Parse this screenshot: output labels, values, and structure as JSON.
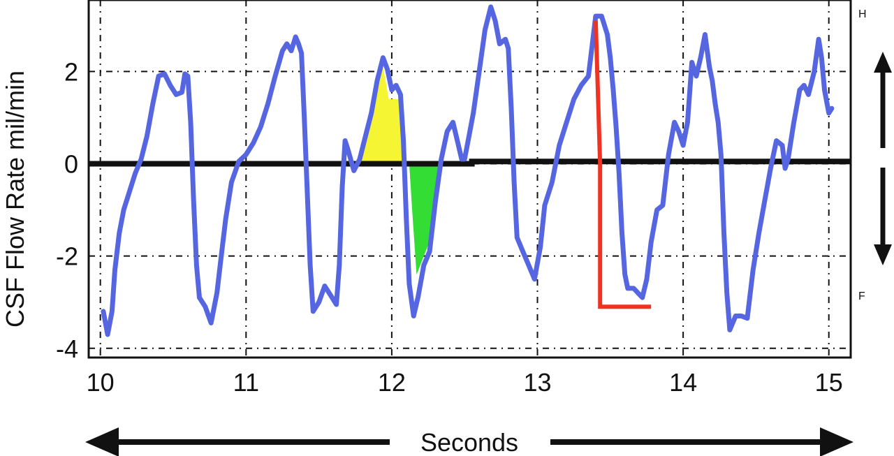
{
  "chart_data": {
    "type": "line",
    "title": "",
    "xlabel": "Seconds",
    "ylabel": "CSF Flow Rate mil/min",
    "xlim": [
      9.92,
      15.15
    ],
    "ylim": [
      -4.2,
      3.55
    ],
    "grid": true,
    "x_ticks": [
      "10",
      "11",
      "12",
      "13",
      "14",
      "15"
    ],
    "y_ticks": [
      "2",
      "0",
      "-2",
      "-4"
    ],
    "direction_labels": {
      "up": "H",
      "down": "F"
    },
    "series": [
      {
        "color": "#5566e0",
        "points": [
          [
            10.02,
            -3.2
          ],
          [
            10.05,
            -3.7
          ],
          [
            10.08,
            -3.2
          ],
          [
            10.1,
            -2.3
          ],
          [
            10.13,
            -1.5
          ],
          [
            10.16,
            -1.0
          ],
          [
            10.2,
            -0.6
          ],
          [
            10.24,
            -0.2
          ],
          [
            10.28,
            0.1
          ],
          [
            10.32,
            0.6
          ],
          [
            10.36,
            1.3
          ],
          [
            10.4,
            1.9
          ],
          [
            10.44,
            1.95
          ],
          [
            10.48,
            1.7
          ],
          [
            10.52,
            1.5
          ],
          [
            10.56,
            1.55
          ],
          [
            10.58,
            1.95
          ],
          [
            10.6,
            1.9
          ],
          [
            10.62,
            0.9
          ],
          [
            10.64,
            -0.8
          ],
          [
            10.66,
            -2.2
          ],
          [
            10.68,
            -2.9
          ],
          [
            10.72,
            -3.1
          ],
          [
            10.76,
            -3.45
          ],
          [
            10.8,
            -2.8
          ],
          [
            10.83,
            -2.0
          ],
          [
            10.86,
            -1.2
          ],
          [
            10.9,
            -0.4
          ],
          [
            10.95,
            0.05
          ],
          [
            11.0,
            0.2
          ],
          [
            11.05,
            0.45
          ],
          [
            11.1,
            0.8
          ],
          [
            11.15,
            1.3
          ],
          [
            11.2,
            1.9
          ],
          [
            11.25,
            2.45
          ],
          [
            11.28,
            2.6
          ],
          [
            11.31,
            2.45
          ],
          [
            11.34,
            2.75
          ],
          [
            11.36,
            2.6
          ],
          [
            11.38,
            2.4
          ],
          [
            11.4,
            1.0
          ],
          [
            11.42,
            -0.6
          ],
          [
            11.44,
            -2.2
          ],
          [
            11.46,
            -3.2
          ],
          [
            11.5,
            -3.0
          ],
          [
            11.54,
            -2.65
          ],
          [
            11.58,
            -2.85
          ],
          [
            11.62,
            -3.05
          ],
          [
            11.64,
            -2.2
          ],
          [
            11.66,
            -0.5
          ],
          [
            11.68,
            0.5
          ],
          [
            11.7,
            0.3
          ],
          [
            11.74,
            -0.15
          ],
          [
            11.78,
            0.1
          ],
          [
            11.82,
            0.6
          ],
          [
            11.86,
            1.1
          ],
          [
            11.9,
            1.8
          ],
          [
            11.94,
            2.3
          ],
          [
            11.97,
            2.05
          ],
          [
            12.0,
            1.6
          ],
          [
            12.03,
            1.7
          ],
          [
            12.06,
            1.5
          ],
          [
            12.08,
            0.5
          ],
          [
            12.1,
            -1.2
          ],
          [
            12.12,
            -2.6
          ],
          [
            12.15,
            -3.3
          ],
          [
            12.18,
            -2.9
          ],
          [
            12.22,
            -2.2
          ],
          [
            12.26,
            -1.9
          ],
          [
            12.3,
            -0.8
          ],
          [
            12.34,
            0.1
          ],
          [
            12.38,
            0.7
          ],
          [
            12.42,
            0.9
          ],
          [
            12.45,
            0.5
          ],
          [
            12.48,
            0.1
          ],
          [
            12.5,
            0.1
          ],
          [
            12.53,
            0.6
          ],
          [
            12.56,
            1.1
          ],
          [
            12.6,
            2.0
          ],
          [
            12.64,
            2.9
          ],
          [
            12.68,
            3.4
          ],
          [
            12.71,
            3.1
          ],
          [
            12.74,
            2.6
          ],
          [
            12.78,
            2.7
          ],
          [
            12.8,
            2.5
          ],
          [
            12.82,
            1.2
          ],
          [
            12.84,
            -0.4
          ],
          [
            12.86,
            -1.6
          ],
          [
            12.9,
            -1.9
          ],
          [
            12.94,
            -2.2
          ],
          [
            12.98,
            -2.5
          ],
          [
            13.02,
            -1.8
          ],
          [
            13.05,
            -0.9
          ],
          [
            13.1,
            -0.4
          ],
          [
            13.15,
            0.4
          ],
          [
            13.2,
            0.9
          ],
          [
            13.25,
            1.4
          ],
          [
            13.3,
            1.7
          ],
          [
            13.35,
            1.9
          ],
          [
            13.4,
            3.2
          ],
          [
            13.44,
            3.2
          ],
          [
            13.48,
            2.8
          ],
          [
            13.5,
            2.3
          ],
          [
            13.52,
            1.6
          ],
          [
            13.54,
            0.8
          ],
          [
            13.56,
            -0.2
          ],
          [
            13.58,
            -1.5
          ],
          [
            13.6,
            -2.4
          ],
          [
            13.62,
            -2.7
          ],
          [
            13.66,
            -2.7
          ],
          [
            13.72,
            -2.9
          ],
          [
            13.75,
            -2.5
          ],
          [
            13.78,
            -1.7
          ],
          [
            13.82,
            -1.0
          ],
          [
            13.86,
            -0.9
          ],
          [
            13.9,
            0.2
          ],
          [
            13.94,
            0.9
          ],
          [
            13.97,
            0.7
          ],
          [
            14.0,
            0.4
          ],
          [
            14.03,
            0.9
          ],
          [
            14.06,
            2.2
          ],
          [
            14.09,
            1.9
          ],
          [
            14.12,
            2.3
          ],
          [
            14.15,
            2.8
          ],
          [
            14.18,
            2.1
          ],
          [
            14.2,
            1.8
          ],
          [
            14.22,
            1.3
          ],
          [
            14.24,
            0.9
          ],
          [
            14.26,
            0.2
          ],
          [
            14.28,
            -1.5
          ],
          [
            14.3,
            -2.8
          ],
          [
            14.32,
            -3.6
          ],
          [
            14.36,
            -3.3
          ],
          [
            14.4,
            -3.3
          ],
          [
            14.44,
            -3.35
          ],
          [
            14.48,
            -2.3
          ],
          [
            14.52,
            -1.5
          ],
          [
            14.56,
            -0.8
          ],
          [
            14.6,
            -0.1
          ],
          [
            14.64,
            0.5
          ],
          [
            14.68,
            0.4
          ],
          [
            14.7,
            -0.1
          ],
          [
            14.72,
            0.1
          ],
          [
            14.76,
            0.9
          ],
          [
            14.8,
            1.6
          ],
          [
            14.83,
            1.7
          ],
          [
            14.86,
            1.5
          ],
          [
            14.9,
            2.0
          ],
          [
            14.93,
            2.7
          ],
          [
            14.95,
            2.3
          ],
          [
            14.97,
            1.6
          ],
          [
            15.0,
            1.1
          ],
          [
            15.02,
            1.2
          ]
        ]
      }
    ],
    "shaded_regions": [
      {
        "color": "#f5f534",
        "points": [
          [
            11.78,
            0.0
          ],
          [
            11.86,
            1.0
          ],
          [
            11.94,
            2.1
          ],
          [
            11.98,
            1.4
          ],
          [
            12.06,
            1.4
          ],
          [
            12.08,
            0.0
          ]
        ]
      },
      {
        "color": "#33dd33",
        "points": [
          [
            12.12,
            0.0
          ],
          [
            12.14,
            -1.0
          ],
          [
            12.17,
            -2.4
          ],
          [
            12.22,
            -2.0
          ],
          [
            12.27,
            -1.6
          ],
          [
            12.33,
            -0.2
          ],
          [
            12.36,
            0.0
          ]
        ]
      }
    ],
    "zero_line": {
      "color": "#111111",
      "points": [
        [
          9.92,
          0.0
        ],
        [
          12.55,
          0.0
        ],
        [
          12.55,
          0.05
        ],
        [
          15.15,
          0.05
        ]
      ]
    },
    "annotation_line": {
      "color": "#ee3322",
      "points": [
        [
          13.4,
          3.1
        ],
        [
          13.43,
          0.0
        ],
        [
          13.43,
          -3.1
        ],
        [
          13.78,
          -3.1
        ]
      ]
    }
  }
}
